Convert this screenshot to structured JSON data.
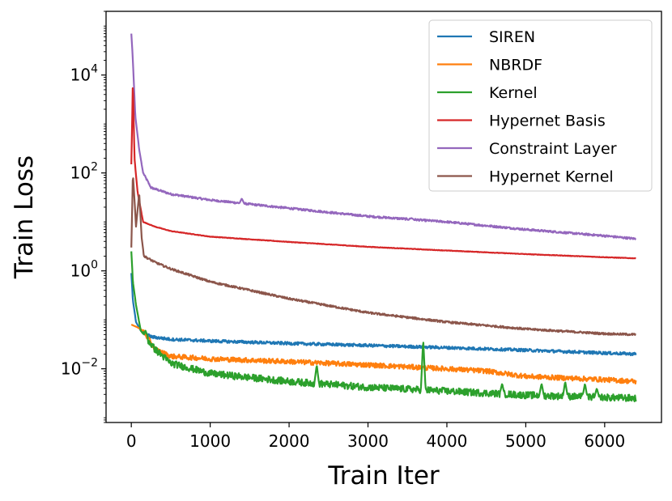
{
  "chart_data": {
    "type": "line",
    "title": "",
    "xlabel": "Train Iter",
    "ylabel": "Train Loss",
    "xlim": [
      -320,
      6720
    ],
    "ylim": [
      0.0008,
      200000
    ],
    "yscale": "log",
    "grid": false,
    "legend_position": "top-right",
    "xticks": [
      {
        "value": 0,
        "label": "0"
      },
      {
        "value": 1000,
        "label": "1000"
      },
      {
        "value": 2000,
        "label": "2000"
      },
      {
        "value": 3000,
        "label": "3000"
      },
      {
        "value": 4000,
        "label": "4000"
      },
      {
        "value": 5000,
        "label": "5000"
      },
      {
        "value": 6000,
        "label": "6000"
      }
    ],
    "yticks": [
      {
        "value": 0.01,
        "base": "10",
        "exp": "−2"
      },
      {
        "value": 1,
        "base": "10",
        "exp": "0"
      },
      {
        "value": 100,
        "base": "10",
        "exp": "2"
      },
      {
        "value": 10000,
        "base": "10",
        "exp": "4"
      }
    ],
    "series": [
      {
        "name": "SIREN",
        "color": "#1f77b4",
        "noise": 0.03,
        "points": [
          [
            0,
            0.9
          ],
          [
            20,
            0.25
          ],
          [
            60,
            0.09
          ],
          [
            120,
            0.06
          ],
          [
            250,
            0.045
          ],
          [
            500,
            0.04
          ],
          [
            1000,
            0.037
          ],
          [
            2000,
            0.033
          ],
          [
            3000,
            0.03
          ],
          [
            4000,
            0.027
          ],
          [
            5000,
            0.024
          ],
          [
            6000,
            0.021
          ],
          [
            6400,
            0.02
          ]
        ],
        "spikes": []
      },
      {
        "name": "NBRDF",
        "color": "#ff7f0e",
        "noise": 0.05,
        "points": [
          [
            0,
            0.08
          ],
          [
            80,
            0.07
          ],
          [
            150,
            0.06
          ],
          [
            300,
            0.025
          ],
          [
            500,
            0.018
          ],
          [
            1000,
            0.016
          ],
          [
            2000,
            0.014
          ],
          [
            3000,
            0.012
          ],
          [
            4000,
            0.01
          ],
          [
            4500,
            0.009
          ],
          [
            5000,
            0.007
          ],
          [
            5500,
            0.0065
          ],
          [
            6000,
            0.006
          ],
          [
            6400,
            0.0055
          ]
        ],
        "spikes": []
      },
      {
        "name": "Kernel",
        "color": "#2ca02c",
        "noise": 0.07,
        "points": [
          [
            0,
            2.5
          ],
          [
            20,
            0.6
          ],
          [
            60,
            0.2
          ],
          [
            120,
            0.06
          ],
          [
            300,
            0.025
          ],
          [
            500,
            0.013
          ],
          [
            1000,
            0.008
          ],
          [
            2000,
            0.0055
          ],
          [
            3000,
            0.0042
          ],
          [
            4000,
            0.0035
          ],
          [
            5000,
            0.0029
          ],
          [
            6000,
            0.0026
          ],
          [
            6400,
            0.0025
          ]
        ],
        "spikes": [
          [
            180,
            0.06
          ],
          [
            2350,
            0.012
          ],
          [
            3700,
            0.04
          ],
          [
            4700,
            0.005
          ],
          [
            5200,
            0.005
          ],
          [
            5500,
            0.0055
          ],
          [
            5750,
            0.005
          ],
          [
            5900,
            0.004
          ]
        ]
      },
      {
        "name": "Hypernet Basis",
        "color": "#d62728",
        "noise": 0.005,
        "points": [
          [
            0,
            150
          ],
          [
            20,
            8000
          ],
          [
            40,
            200
          ],
          [
            80,
            40
          ],
          [
            150,
            10
          ],
          [
            300,
            8
          ],
          [
            500,
            6.5
          ],
          [
            1000,
            5
          ],
          [
            2000,
            3.9
          ],
          [
            3000,
            3.1
          ],
          [
            4000,
            2.6
          ],
          [
            5000,
            2.2
          ],
          [
            6000,
            1.9
          ],
          [
            6400,
            1.8
          ]
        ],
        "spikes": []
      },
      {
        "name": "Constraint Layer",
        "color": "#9467bd",
        "noise": 0.02,
        "points": [
          [
            0,
            70000
          ],
          [
            20,
            20000
          ],
          [
            50,
            1500
          ],
          [
            100,
            300
          ],
          [
            150,
            100
          ],
          [
            250,
            50
          ],
          [
            500,
            37
          ],
          [
            1000,
            28
          ],
          [
            2000,
            19
          ],
          [
            3000,
            13
          ],
          [
            4000,
            10
          ],
          [
            5000,
            7
          ],
          [
            6000,
            5.2
          ],
          [
            6400,
            4.5
          ]
        ],
        "spikes": [
          [
            1400,
            30
          ],
          [
            3550,
            12
          ]
        ]
      },
      {
        "name": "Hypernet Kernel",
        "color": "#8c564b",
        "noise": 0.02,
        "points": [
          [
            0,
            3
          ],
          [
            20,
            100
          ],
          [
            60,
            8
          ],
          [
            100,
            40
          ],
          [
            130,
            5
          ],
          [
            160,
            2
          ],
          [
            300,
            1.5
          ],
          [
            500,
            1.1
          ],
          [
            1000,
            0.6
          ],
          [
            2000,
            0.27
          ],
          [
            3000,
            0.14
          ],
          [
            4000,
            0.09
          ],
          [
            5000,
            0.065
          ],
          [
            6000,
            0.052
          ],
          [
            6400,
            0.05
          ]
        ],
        "spikes": []
      }
    ]
  }
}
